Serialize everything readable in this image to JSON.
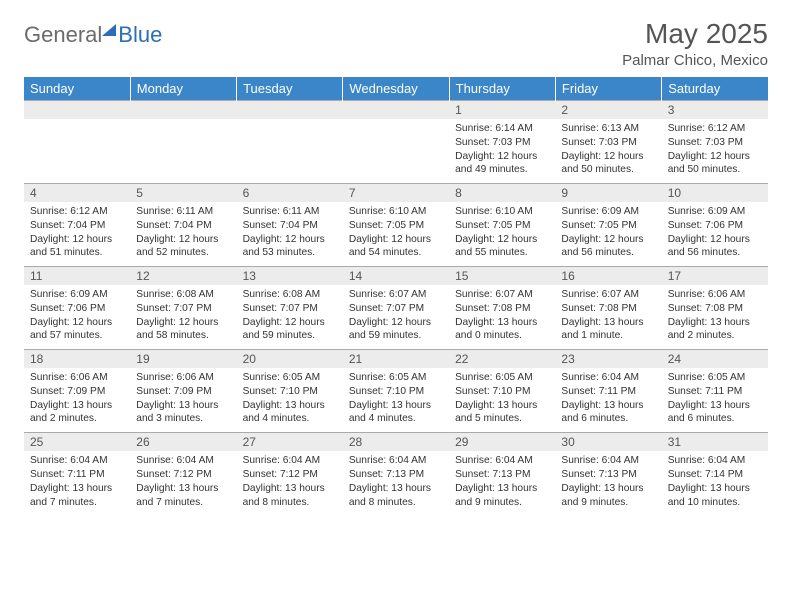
{
  "brand": {
    "text1": "General",
    "text2": "Blue"
  },
  "title": "May 2025",
  "location": "Palmar Chico, Mexico",
  "colors": {
    "header_bg": "#3a86c8",
    "header_text": "#ffffff",
    "daynum_bg": "#ececec",
    "text": "#333333",
    "title_text": "#555555",
    "logo_gray": "#6b6b6b",
    "logo_blue": "#2a6fb5",
    "border": "#aaaaaa"
  },
  "typography": {
    "title_fontsize": 28,
    "location_fontsize": 15,
    "dayhead_fontsize": 13,
    "daynum_fontsize": 12,
    "cell_fontsize": 10.2,
    "logo_fontsize": 22
  },
  "day_headers": [
    "Sunday",
    "Monday",
    "Tuesday",
    "Wednesday",
    "Thursday",
    "Friday",
    "Saturday"
  ],
  "weeks": [
    [
      null,
      null,
      null,
      null,
      {
        "n": "1",
        "sr": "6:14 AM",
        "ss": "7:03 PM",
        "dl": "12 hours and 49 minutes."
      },
      {
        "n": "2",
        "sr": "6:13 AM",
        "ss": "7:03 PM",
        "dl": "12 hours and 50 minutes."
      },
      {
        "n": "3",
        "sr": "6:12 AM",
        "ss": "7:03 PM",
        "dl": "12 hours and 50 minutes."
      }
    ],
    [
      {
        "n": "4",
        "sr": "6:12 AM",
        "ss": "7:04 PM",
        "dl": "12 hours and 51 minutes."
      },
      {
        "n": "5",
        "sr": "6:11 AM",
        "ss": "7:04 PM",
        "dl": "12 hours and 52 minutes."
      },
      {
        "n": "6",
        "sr": "6:11 AM",
        "ss": "7:04 PM",
        "dl": "12 hours and 53 minutes."
      },
      {
        "n": "7",
        "sr": "6:10 AM",
        "ss": "7:05 PM",
        "dl": "12 hours and 54 minutes."
      },
      {
        "n": "8",
        "sr": "6:10 AM",
        "ss": "7:05 PM",
        "dl": "12 hours and 55 minutes."
      },
      {
        "n": "9",
        "sr": "6:09 AM",
        "ss": "7:05 PM",
        "dl": "12 hours and 56 minutes."
      },
      {
        "n": "10",
        "sr": "6:09 AM",
        "ss": "7:06 PM",
        "dl": "12 hours and 56 minutes."
      }
    ],
    [
      {
        "n": "11",
        "sr": "6:09 AM",
        "ss": "7:06 PM",
        "dl": "12 hours and 57 minutes."
      },
      {
        "n": "12",
        "sr": "6:08 AM",
        "ss": "7:07 PM",
        "dl": "12 hours and 58 minutes."
      },
      {
        "n": "13",
        "sr": "6:08 AM",
        "ss": "7:07 PM",
        "dl": "12 hours and 59 minutes."
      },
      {
        "n": "14",
        "sr": "6:07 AM",
        "ss": "7:07 PM",
        "dl": "12 hours and 59 minutes."
      },
      {
        "n": "15",
        "sr": "6:07 AM",
        "ss": "7:08 PM",
        "dl": "13 hours and 0 minutes."
      },
      {
        "n": "16",
        "sr": "6:07 AM",
        "ss": "7:08 PM",
        "dl": "13 hours and 1 minute."
      },
      {
        "n": "17",
        "sr": "6:06 AM",
        "ss": "7:08 PM",
        "dl": "13 hours and 2 minutes."
      }
    ],
    [
      {
        "n": "18",
        "sr": "6:06 AM",
        "ss": "7:09 PM",
        "dl": "13 hours and 2 minutes."
      },
      {
        "n": "19",
        "sr": "6:06 AM",
        "ss": "7:09 PM",
        "dl": "13 hours and 3 minutes."
      },
      {
        "n": "20",
        "sr": "6:05 AM",
        "ss": "7:10 PM",
        "dl": "13 hours and 4 minutes."
      },
      {
        "n": "21",
        "sr": "6:05 AM",
        "ss": "7:10 PM",
        "dl": "13 hours and 4 minutes."
      },
      {
        "n": "22",
        "sr": "6:05 AM",
        "ss": "7:10 PM",
        "dl": "13 hours and 5 minutes."
      },
      {
        "n": "23",
        "sr": "6:04 AM",
        "ss": "7:11 PM",
        "dl": "13 hours and 6 minutes."
      },
      {
        "n": "24",
        "sr": "6:05 AM",
        "ss": "7:11 PM",
        "dl": "13 hours and 6 minutes."
      }
    ],
    [
      {
        "n": "25",
        "sr": "6:04 AM",
        "ss": "7:11 PM",
        "dl": "13 hours and 7 minutes."
      },
      {
        "n": "26",
        "sr": "6:04 AM",
        "ss": "7:12 PM",
        "dl": "13 hours and 7 minutes."
      },
      {
        "n": "27",
        "sr": "6:04 AM",
        "ss": "7:12 PM",
        "dl": "13 hours and 8 minutes."
      },
      {
        "n": "28",
        "sr": "6:04 AM",
        "ss": "7:13 PM",
        "dl": "13 hours and 8 minutes."
      },
      {
        "n": "29",
        "sr": "6:04 AM",
        "ss": "7:13 PM",
        "dl": "13 hours and 9 minutes."
      },
      {
        "n": "30",
        "sr": "6:04 AM",
        "ss": "7:13 PM",
        "dl": "13 hours and 9 minutes."
      },
      {
        "n": "31",
        "sr": "6:04 AM",
        "ss": "7:14 PM",
        "dl": "13 hours and 10 minutes."
      }
    ]
  ],
  "labels": {
    "sunrise": "Sunrise:",
    "sunset": "Sunset:",
    "daylight": "Daylight:"
  }
}
